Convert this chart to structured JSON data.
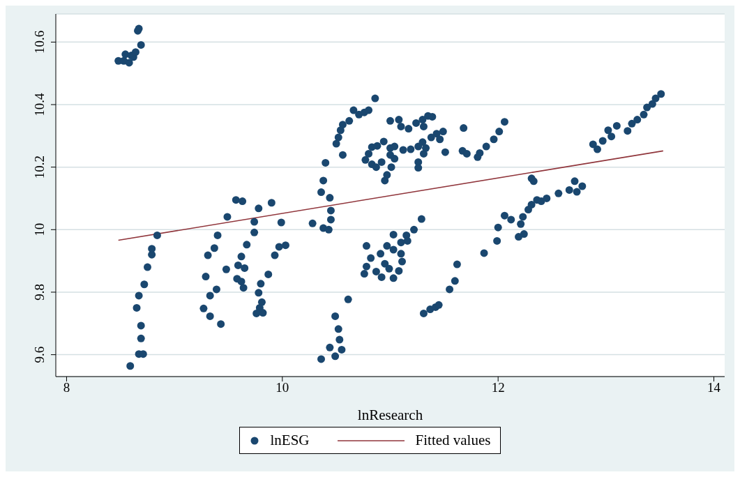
{
  "chart_data": {
    "type": "scatter",
    "xlabel": "lnResearch",
    "xlim": [
      7.9,
      14.1
    ],
    "xticks": [
      8,
      10,
      12,
      14
    ],
    "ylim": [
      9.53,
      10.69
    ],
    "yticks": [
      9.6,
      9.8,
      10,
      10.2,
      10.4,
      10.6
    ],
    "grid": "y",
    "legend": "bottom",
    "series": [
      {
        "name": "lnESG",
        "marker": "circle",
        "color": "#1a476f",
        "x": [
          8.48,
          8.53,
          8.545,
          8.58,
          8.6,
          8.62,
          8.64,
          8.66,
          8.67,
          8.69,
          8.59,
          8.67,
          8.71,
          8.69,
          8.69,
          8.65,
          8.67,
          8.72,
          8.75,
          8.79,
          8.79,
          8.84,
          9.27,
          9.33,
          9.43,
          9.29,
          9.33,
          9.39,
          9.31,
          9.37,
          9.4,
          9.48,
          9.49,
          9.57,
          9.63,
          9.59,
          9.65,
          9.62,
          9.58,
          9.62,
          9.64,
          9.67,
          9.74,
          9.74,
          9.78,
          9.8,
          9.78,
          9.81,
          9.79,
          9.76,
          9.82,
          9.87,
          9.93,
          9.97,
          10.03,
          9.99,
          9.9,
          10.28,
          10.86,
          10.66,
          10.71,
          10.76,
          10.8,
          10.62,
          10.56,
          10.54,
          10.52,
          10.5,
          10.56,
          10.4,
          10.38,
          10.36,
          10.44,
          10.45,
          10.45,
          10.38,
          10.43,
          11.0,
          11.08,
          11.1,
          11.17,
          11.24,
          11.3,
          11.35,
          11.39,
          11.31,
          11.68,
          10.77,
          10.8,
          10.83,
          10.88,
          10.94,
          10.83,
          10.87,
          10.92,
          11.01,
          10.95,
          10.97,
          11.0,
          11.04,
          11.04,
          11.0,
          11.12,
          11.19,
          11.26,
          11.3,
          11.33,
          11.31,
          11.26,
          11.26,
          11.38,
          11.43,
          11.46,
          11.49,
          11.51,
          11.67,
          11.71,
          11.81,
          11.83,
          11.89,
          11.96,
          12.01,
          12.06,
          11.03,
          11.15,
          11.16,
          11.22,
          11.29,
          11.1,
          10.78,
          10.82,
          10.78,
          10.76,
          10.87,
          10.92,
          10.91,
          10.97,
          11.03,
          10.95,
          10.99,
          11.03,
          11.08,
          11.1,
          11.11,
          10.36,
          10.44,
          10.49,
          10.55,
          10.53,
          10.52,
          10.49,
          10.61,
          11.31,
          11.37,
          11.42,
          11.45,
          11.55,
          11.6,
          11.62,
          11.87,
          11.99,
          12.0,
          12.06,
          12.12,
          12.19,
          12.24,
          12.21,
          12.23,
          12.28,
          12.31,
          12.36,
          12.4,
          12.45,
          12.31,
          12.33,
          12.56,
          12.66,
          12.71,
          12.73,
          12.78,
          12.88,
          12.92,
          12.97,
          13.02,
          13.05,
          13.1,
          13.2,
          13.24,
          13.29,
          13.35,
          13.38,
          13.43,
          13.46,
          13.51
        ],
        "values": [
          10.54,
          10.54,
          10.561,
          10.534,
          10.557,
          10.552,
          10.568,
          10.636,
          10.643,
          10.591,
          9.564,
          9.602,
          9.602,
          9.652,
          9.693,
          9.75,
          9.789,
          9.825,
          9.88,
          9.92,
          9.939,
          9.982,
          9.748,
          9.723,
          9.698,
          9.85,
          9.789,
          9.809,
          9.918,
          9.941,
          9.982,
          9.873,
          10.041,
          10.095,
          10.091,
          9.886,
          9.877,
          9.914,
          9.843,
          9.834,
          9.814,
          9.952,
          9.991,
          10.025,
          10.068,
          9.827,
          9.798,
          9.768,
          9.75,
          9.732,
          9.734,
          9.857,
          9.918,
          9.945,
          9.95,
          10.023,
          10.086,
          10.02,
          10.42,
          10.382,
          10.368,
          10.375,
          10.382,
          10.348,
          10.336,
          10.318,
          10.295,
          10.275,
          10.239,
          10.214,
          10.157,
          10.12,
          10.102,
          10.061,
          10.032,
          10.005,
          10.0,
          10.348,
          10.352,
          10.33,
          10.323,
          10.341,
          10.352,
          10.364,
          10.361,
          10.33,
          10.325,
          10.223,
          10.243,
          10.264,
          10.268,
          10.282,
          10.209,
          10.2,
          10.216,
          10.2,
          10.157,
          10.175,
          10.261,
          10.266,
          10.227,
          10.239,
          10.255,
          10.257,
          10.266,
          10.28,
          10.261,
          10.243,
          10.216,
          10.198,
          10.295,
          10.307,
          10.289,
          10.314,
          10.248,
          10.252,
          10.243,
          10.232,
          10.245,
          10.266,
          10.289,
          10.314,
          10.345,
          9.984,
          9.982,
          9.964,
          10.0,
          10.034,
          9.959,
          9.948,
          9.909,
          9.882,
          9.859,
          9.866,
          9.848,
          9.923,
          9.948,
          9.936,
          9.891,
          9.875,
          9.845,
          9.868,
          9.923,
          9.898,
          9.586,
          9.623,
          9.595,
          9.616,
          9.648,
          9.682,
          9.723,
          9.777,
          9.732,
          9.745,
          9.752,
          9.759,
          9.809,
          9.836,
          9.889,
          9.925,
          9.964,
          10.007,
          10.045,
          10.032,
          9.977,
          9.986,
          10.018,
          10.041,
          10.064,
          10.08,
          10.095,
          10.091,
          10.1,
          10.164,
          10.155,
          10.116,
          10.127,
          10.155,
          10.121,
          10.139,
          10.273,
          10.257,
          10.284,
          10.318,
          10.298,
          10.332,
          10.316,
          10.339,
          10.352,
          10.368,
          10.391,
          10.402,
          10.42,
          10.434
        ]
      },
      {
        "name": "Fitted values",
        "type": "line",
        "color": "#90353b",
        "line_style": "solid",
        "marker": "none",
        "x": [
          8.48,
          13.53
        ],
        "values": [
          9.966,
          10.252
        ]
      }
    ]
  }
}
